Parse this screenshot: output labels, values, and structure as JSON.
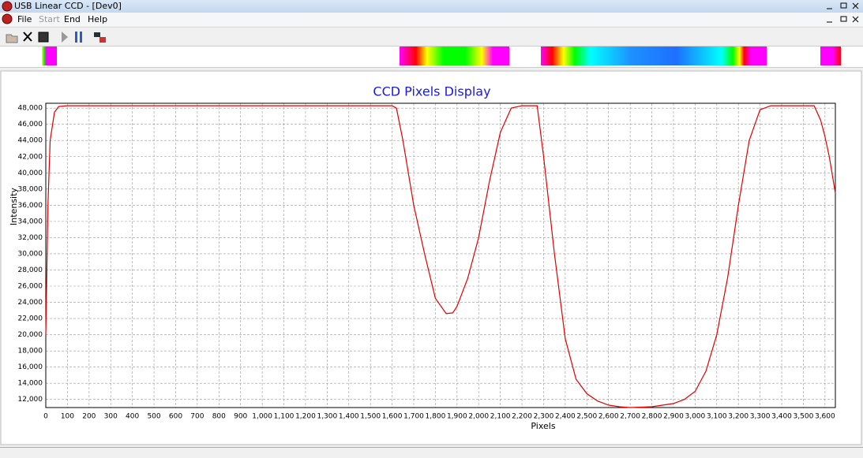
{
  "window": {
    "title": "USB Linear CCD - [Dev0]"
  },
  "menu": [
    "File",
    "Start",
    "End",
    "Help"
  ],
  "chart_data": {
    "type": "line",
    "title": "CCD Pixels Display",
    "x_label": "Pixels",
    "y_label": "Intensity",
    "color": "#e00000",
    "grid": true,
    "x": [
      0,
      10,
      20,
      40,
      60,
      100,
      1600,
      1620,
      1650,
      1700,
      1750,
      1800,
      1850,
      1880,
      1900,
      1950,
      2000,
      2050,
      2100,
      2150,
      2200,
      2270,
      2300,
      2350,
      2400,
      2450,
      2500,
      2550,
      2600,
      2650,
      2700,
      2800,
      2900,
      2950,
      3000,
      3050,
      3100,
      3150,
      3200,
      3250,
      3300,
      3350,
      3550,
      3580,
      3600,
      3620,
      3648
    ],
    "values": [
      20000,
      36000,
      44000,
      47500,
      48200,
      48300,
      48300,
      48000,
      44000,
      36000,
      30000,
      24500,
      22600,
      22700,
      23500,
      27000,
      32000,
      39000,
      45000,
      48000,
      48300,
      48300,
      42000,
      30000,
      19500,
      14500,
      12700,
      11800,
      11300,
      11100,
      11000,
      11100,
      11500,
      12000,
      13000,
      15500,
      20000,
      27000,
      36000,
      44000,
      47800,
      48300,
      48300,
      46500,
      44500,
      42000,
      37500
    ],
    "xlim": [
      0,
      3648
    ],
    "ylim": [
      11000,
      48600
    ],
    "xticks": [
      0,
      100,
      200,
      300,
      400,
      500,
      600,
      700,
      800,
      900,
      {
        "value": 1000,
        "label": "1,000"
      },
      {
        "value": 1100,
        "label": "1,100"
      },
      {
        "value": 1200,
        "label": "1,200"
      },
      {
        "value": 1300,
        "label": "1,300"
      },
      {
        "value": 1400,
        "label": "1,400"
      },
      {
        "value": 1500,
        "label": "1,500"
      },
      {
        "value": 1600,
        "label": "1,600"
      },
      {
        "value": 1700,
        "label": "1,700"
      },
      {
        "value": 1800,
        "label": "1,800"
      },
      {
        "value": 1900,
        "label": "1,900"
      },
      {
        "value": 2000,
        "label": "2,000"
      },
      {
        "value": 2100,
        "label": "2,100"
      },
      {
        "value": 2200,
        "label": "2,200"
      },
      {
        "value": 2300,
        "label": "2,300"
      },
      {
        "value": 2400,
        "label": "2,400"
      },
      {
        "value": 2500,
        "label": "2,500"
      },
      {
        "value": 2600,
        "label": "2,600"
      },
      {
        "value": 2700,
        "label": "2,700"
      },
      {
        "value": 2800,
        "label": "2,800"
      },
      {
        "value": 2900,
        "label": "2,900"
      },
      {
        "value": 3000,
        "label": "3,000"
      },
      {
        "value": 3100,
        "label": "3,100"
      },
      {
        "value": 3200,
        "label": "3,200"
      },
      {
        "value": 3300,
        "label": "3,300"
      },
      {
        "value": 3400,
        "label": "3,400"
      },
      {
        "value": 3500,
        "label": "3,500"
      },
      {
        "value": 3600,
        "label": "3,600"
      }
    ],
    "yticks": [
      {
        "value": 12000,
        "label": "12,000"
      },
      {
        "value": 14000,
        "label": "14,000"
      },
      {
        "value": 16000,
        "label": "16,000"
      },
      {
        "value": 18000,
        "label": "18,000"
      },
      {
        "value": 20000,
        "label": "20,000"
      },
      {
        "value": 22000,
        "label": "22,000"
      },
      {
        "value": 24000,
        "label": "24,000"
      },
      {
        "value": 26000,
        "label": "26,000"
      },
      {
        "value": 28000,
        "label": "28,000"
      },
      {
        "value": 30000,
        "label": "30,000"
      },
      {
        "value": 32000,
        "label": "32,000"
      },
      {
        "value": 34000,
        "label": "34,000"
      },
      {
        "value": 36000,
        "label": "36,000"
      },
      {
        "value": 38000,
        "label": "38,000"
      },
      {
        "value": 40000,
        "label": "40,000"
      },
      {
        "value": 42000,
        "label": "42,000"
      },
      {
        "value": 44000,
        "label": "44,000"
      },
      {
        "value": 46000,
        "label": "46,000"
      },
      {
        "value": 48000,
        "label": "48,000"
      }
    ]
  }
}
